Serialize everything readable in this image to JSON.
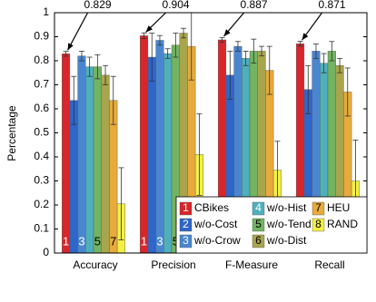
{
  "chart_data": {
    "type": "bar",
    "y_label": "Percentage",
    "categories": [
      "Accuracy",
      "Precision",
      "F-Measure",
      "Recall"
    ],
    "ylim": [
      0,
      1
    ],
    "yticks": [
      0,
      0.1,
      0.2,
      0.3,
      0.4,
      0.5,
      0.6,
      0.7,
      0.8,
      0.9,
      1
    ],
    "legend": "lower right",
    "annotate_series": 0,
    "series": [
      {
        "name": "CBikes",
        "marker": "1",
        "bar_label": true,
        "color": "#d8262a",
        "values": [
          0.829,
          0.904,
          0.887,
          0.871
        ],
        "errors": [
          0.01,
          0.012,
          0.01,
          0.01
        ]
      },
      {
        "name": "w/o-Cost",
        "marker": "2",
        "bar_label": false,
        "color": "#2f66c8",
        "values": [
          0.635,
          0.815,
          0.74,
          0.68
        ],
        "errors": [
          0.1,
          0.1,
          0.1,
          0.1
        ]
      },
      {
        "name": "w/o-Crow",
        "marker": "3",
        "bar_label": true,
        "color": "#4a86cf",
        "values": [
          0.82,
          0.885,
          0.86,
          0.84
        ],
        "errors": [
          0.02,
          0.02,
          0.02,
          0.03
        ]
      },
      {
        "name": "w/o-Hist",
        "marker": "4",
        "bar_label": false,
        "color": "#4fb0bd",
        "values": [
          0.775,
          0.83,
          0.81,
          0.79
        ],
        "errors": [
          0.04,
          0.02,
          0.03,
          0.04
        ]
      },
      {
        "name": "w/o-Tend",
        "marker": "5",
        "bar_label": true,
        "color": "#72b462",
        "values": [
          0.775,
          0.865,
          0.84,
          0.84
        ],
        "errors": [
          0.05,
          0.05,
          0.05,
          0.04
        ]
      },
      {
        "name": "w/o-Dist",
        "marker": "6",
        "bar_label": false,
        "color": "#a8a54c",
        "values": [
          0.74,
          0.915,
          0.84,
          0.78
        ],
        "errors": [
          0.04,
          0.02,
          0.02,
          0.03
        ]
      },
      {
        "name": "HEU",
        "marker": "7",
        "bar_label": true,
        "color": "#e7ab3c",
        "values": [
          0.635,
          0.86,
          0.76,
          0.67
        ],
        "errors": [
          0.1,
          0.14,
          0.1,
          0.1
        ]
      },
      {
        "name": "RAND",
        "marker": "8",
        "bar_label": false,
        "color": "#f3ef45",
        "values": [
          0.205,
          0.41,
          0.345,
          0.3
        ],
        "errors": [
          0.15,
          0.17,
          0.12,
          0.17
        ]
      }
    ]
  }
}
